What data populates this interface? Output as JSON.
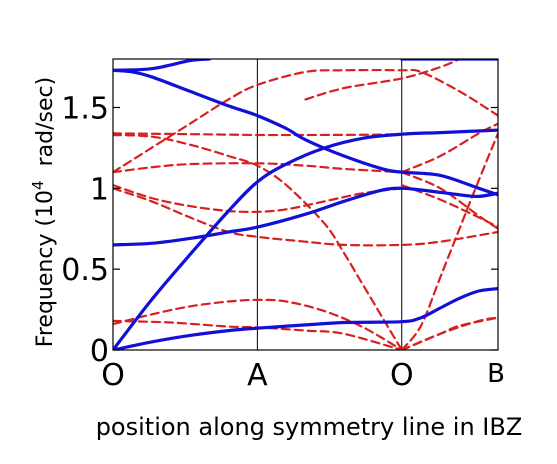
{
  "chart_data": {
    "type": "line",
    "title": "",
    "xlabel": "position along symmetry line in IBZ",
    "ylabel_main": "Frequency (10",
    "ylabel_exponent": "4",
    "ylabel_unit": "rad/sec)",
    "ylim": [
      0,
      1.8
    ],
    "xlim": [
      0,
      1
    ],
    "grid": "vertical lines at symmetry points",
    "legend": "none",
    "x_ticks": [
      {
        "x": 0.0,
        "label": "O"
      },
      {
        "x": 0.375,
        "label": "A"
      },
      {
        "x": 0.75,
        "label": "O"
      },
      {
        "x": 1.0,
        "label": "B"
      }
    ],
    "y_ticks": [
      {
        "y": 0,
        "label": "0"
      },
      {
        "y": 0.5,
        "label": "0.5"
      },
      {
        "y": 1.0,
        "label": "1"
      },
      {
        "y": 1.5,
        "label": "1.5"
      }
    ],
    "colors": {
      "solid": "#1010d8",
      "dashed": "#d82020"
    },
    "series": [
      {
        "style": "solid",
        "points": [
          [
            0,
            0
          ],
          [
            0.1,
            0.05
          ],
          [
            0.2,
            0.09
          ],
          [
            0.3,
            0.12
          ],
          [
            0.375,
            0.135
          ],
          [
            0.5,
            0.155
          ],
          [
            0.6,
            0.17
          ],
          [
            0.75,
            0.175
          ],
          [
            0.8,
            0.2
          ],
          [
            0.85,
            0.26
          ],
          [
            0.9,
            0.32
          ],
          [
            0.95,
            0.365
          ],
          [
            1,
            0.38
          ]
        ]
      },
      {
        "style": "solid",
        "points": [
          [
            0,
            0
          ],
          [
            0.1,
            0.31
          ],
          [
            0.2,
            0.59
          ],
          [
            0.3,
            0.86
          ],
          [
            0.375,
            1.04
          ],
          [
            0.45,
            1.15
          ],
          [
            0.55,
            1.25
          ],
          [
            0.65,
            1.31
          ],
          [
            0.75,
            1.335
          ],
          [
            0.85,
            1.345
          ],
          [
            1,
            1.36
          ]
        ]
      },
      {
        "style": "solid",
        "points": [
          [
            0,
            0.65
          ],
          [
            0.1,
            0.66
          ],
          [
            0.2,
            0.69
          ],
          [
            0.3,
            0.73
          ],
          [
            0.375,
            0.76
          ],
          [
            0.5,
            0.84
          ],
          [
            0.6,
            0.92
          ],
          [
            0.7,
            0.99
          ],
          [
            0.75,
            1.0
          ],
          [
            0.8,
            0.99
          ],
          [
            0.9,
            0.96
          ],
          [
            0.95,
            0.95
          ],
          [
            1,
            0.97
          ]
        ]
      },
      {
        "style": "solid",
        "points": [
          [
            0,
            1.73
          ],
          [
            0.05,
            1.72
          ],
          [
            0.1,
            1.69
          ],
          [
            0.2,
            1.6
          ],
          [
            0.3,
            1.51
          ],
          [
            0.375,
            1.45
          ],
          [
            0.45,
            1.37
          ],
          [
            0.5,
            1.3
          ],
          [
            0.6,
            1.2
          ],
          [
            0.7,
            1.12
          ],
          [
            0.75,
            1.1
          ],
          [
            0.85,
            1.08
          ],
          [
            0.95,
            1.0
          ],
          [
            1,
            0.96
          ]
        ]
      },
      {
        "style": "solid",
        "points": [
          [
            0,
            1.73
          ],
          [
            0.1,
            1.74
          ],
          [
            0.2,
            1.79
          ],
          [
            0.25,
            1.8
          ]
        ]
      },
      {
        "style": "solid",
        "points": [
          [
            0.75,
            1.8
          ],
          [
            1,
            1.8
          ]
        ]
      },
      {
        "style": "dashed",
        "points": [
          [
            0,
            0.16
          ],
          [
            0.1,
            0.22
          ],
          [
            0.2,
            0.27
          ],
          [
            0.3,
            0.3
          ],
          [
            0.375,
            0.31
          ],
          [
            0.45,
            0.3
          ],
          [
            0.55,
            0.24
          ],
          [
            0.65,
            0.14
          ],
          [
            0.75,
            0.0
          ]
        ]
      },
      {
        "style": "dashed",
        "points": [
          [
            0,
            0.18
          ],
          [
            0.15,
            0.17
          ],
          [
            0.3,
            0.145
          ],
          [
            0.375,
            0.14
          ],
          [
            0.5,
            0.12
          ],
          [
            0.6,
            0.1
          ],
          [
            0.75,
            0.0
          ]
        ]
      },
      {
        "style": "dashed",
        "points": [
          [
            0.75,
            0.0
          ],
          [
            0.85,
            0.1
          ],
          [
            0.9,
            0.15
          ],
          [
            1,
            0.2
          ]
        ]
      },
      {
        "style": "dashed",
        "points": [
          [
            0.75,
            0.0
          ],
          [
            0.85,
            0.1
          ],
          [
            0.95,
            0.18
          ],
          [
            1,
            0.2
          ]
        ]
      },
      {
        "style": "dashed",
        "points": [
          [
            0,
            1.02
          ],
          [
            0.1,
            0.94
          ],
          [
            0.2,
            0.89
          ],
          [
            0.3,
            0.86
          ],
          [
            0.375,
            0.855
          ],
          [
            0.45,
            0.87
          ],
          [
            0.55,
            0.92
          ],
          [
            0.65,
            0.97
          ],
          [
            0.75,
            1.0
          ]
        ]
      },
      {
        "style": "dashed",
        "points": [
          [
            0,
            1.0
          ],
          [
            0.1,
            0.92
          ],
          [
            0.2,
            0.82
          ],
          [
            0.3,
            0.73
          ],
          [
            0.375,
            0.7
          ],
          [
            0.5,
            0.67
          ],
          [
            0.6,
            0.65
          ],
          [
            0.75,
            0.65
          ],
          [
            0.85,
            0.67
          ],
          [
            1,
            0.73
          ]
        ]
      },
      {
        "style": "dashed",
        "points": [
          [
            0,
            1.1
          ],
          [
            0.1,
            1.13
          ],
          [
            0.2,
            1.15
          ],
          [
            0.375,
            1.155
          ],
          [
            0.5,
            1.14
          ],
          [
            0.6,
            1.12
          ],
          [
            0.75,
            1.1
          ]
        ]
      },
      {
        "style": "dashed",
        "points": [
          [
            0,
            1.33
          ],
          [
            0.1,
            1.32
          ],
          [
            0.2,
            1.27
          ],
          [
            0.3,
            1.2
          ],
          [
            0.375,
            1.14
          ],
          [
            0.45,
            1.02
          ],
          [
            0.55,
            0.78
          ],
          [
            0.6,
            0.6
          ],
          [
            0.65,
            0.4
          ],
          [
            0.7,
            0.2
          ],
          [
            0.75,
            0.0
          ]
        ]
      },
      {
        "style": "dashed",
        "points": [
          [
            0,
            1.1
          ],
          [
            0.1,
            1.25
          ],
          [
            0.2,
            1.4
          ],
          [
            0.3,
            1.55
          ],
          [
            0.375,
            1.64
          ],
          [
            0.5,
            1.72
          ],
          [
            0.6,
            1.73
          ],
          [
            0.75,
            1.73
          ],
          [
            0.8,
            1.72
          ],
          [
            0.9,
            1.6
          ],
          [
            1,
            1.45
          ]
        ]
      },
      {
        "style": "dashed",
        "points": [
          [
            0,
            1.34
          ],
          [
            0.2,
            1.335
          ],
          [
            0.375,
            1.33
          ],
          [
            0.5,
            1.33
          ],
          [
            0.75,
            1.335
          ],
          [
            1,
            1.36
          ]
        ]
      },
      {
        "style": "dashed",
        "points": [
          [
            0.75,
            1.1
          ],
          [
            0.85,
            1.2
          ],
          [
            0.95,
            1.34
          ],
          [
            1,
            1.4
          ]
        ]
      },
      {
        "style": "dashed",
        "points": [
          [
            0.75,
            1.02
          ],
          [
            0.85,
            0.93
          ],
          [
            0.95,
            0.82
          ],
          [
            1,
            0.76
          ]
        ]
      },
      {
        "style": "dashed",
        "points": [
          [
            0.75,
            0.0
          ],
          [
            0.8,
            0.15
          ],
          [
            0.85,
            0.45
          ],
          [
            0.9,
            0.75
          ],
          [
            0.95,
            1.05
          ],
          [
            1,
            1.34
          ]
        ]
      },
      {
        "style": "dashed",
        "points": [
          [
            0.75,
            1.1
          ],
          [
            0.85,
            1.0
          ],
          [
            0.95,
            0.83
          ],
          [
            1,
            0.75
          ]
        ]
      },
      {
        "style": "dashed",
        "points": [
          [
            0.5,
            1.55
          ],
          [
            0.6,
            1.62
          ],
          [
            0.75,
            1.68
          ],
          [
            0.85,
            1.75
          ],
          [
            0.9,
            1.8
          ]
        ]
      }
    ]
  }
}
